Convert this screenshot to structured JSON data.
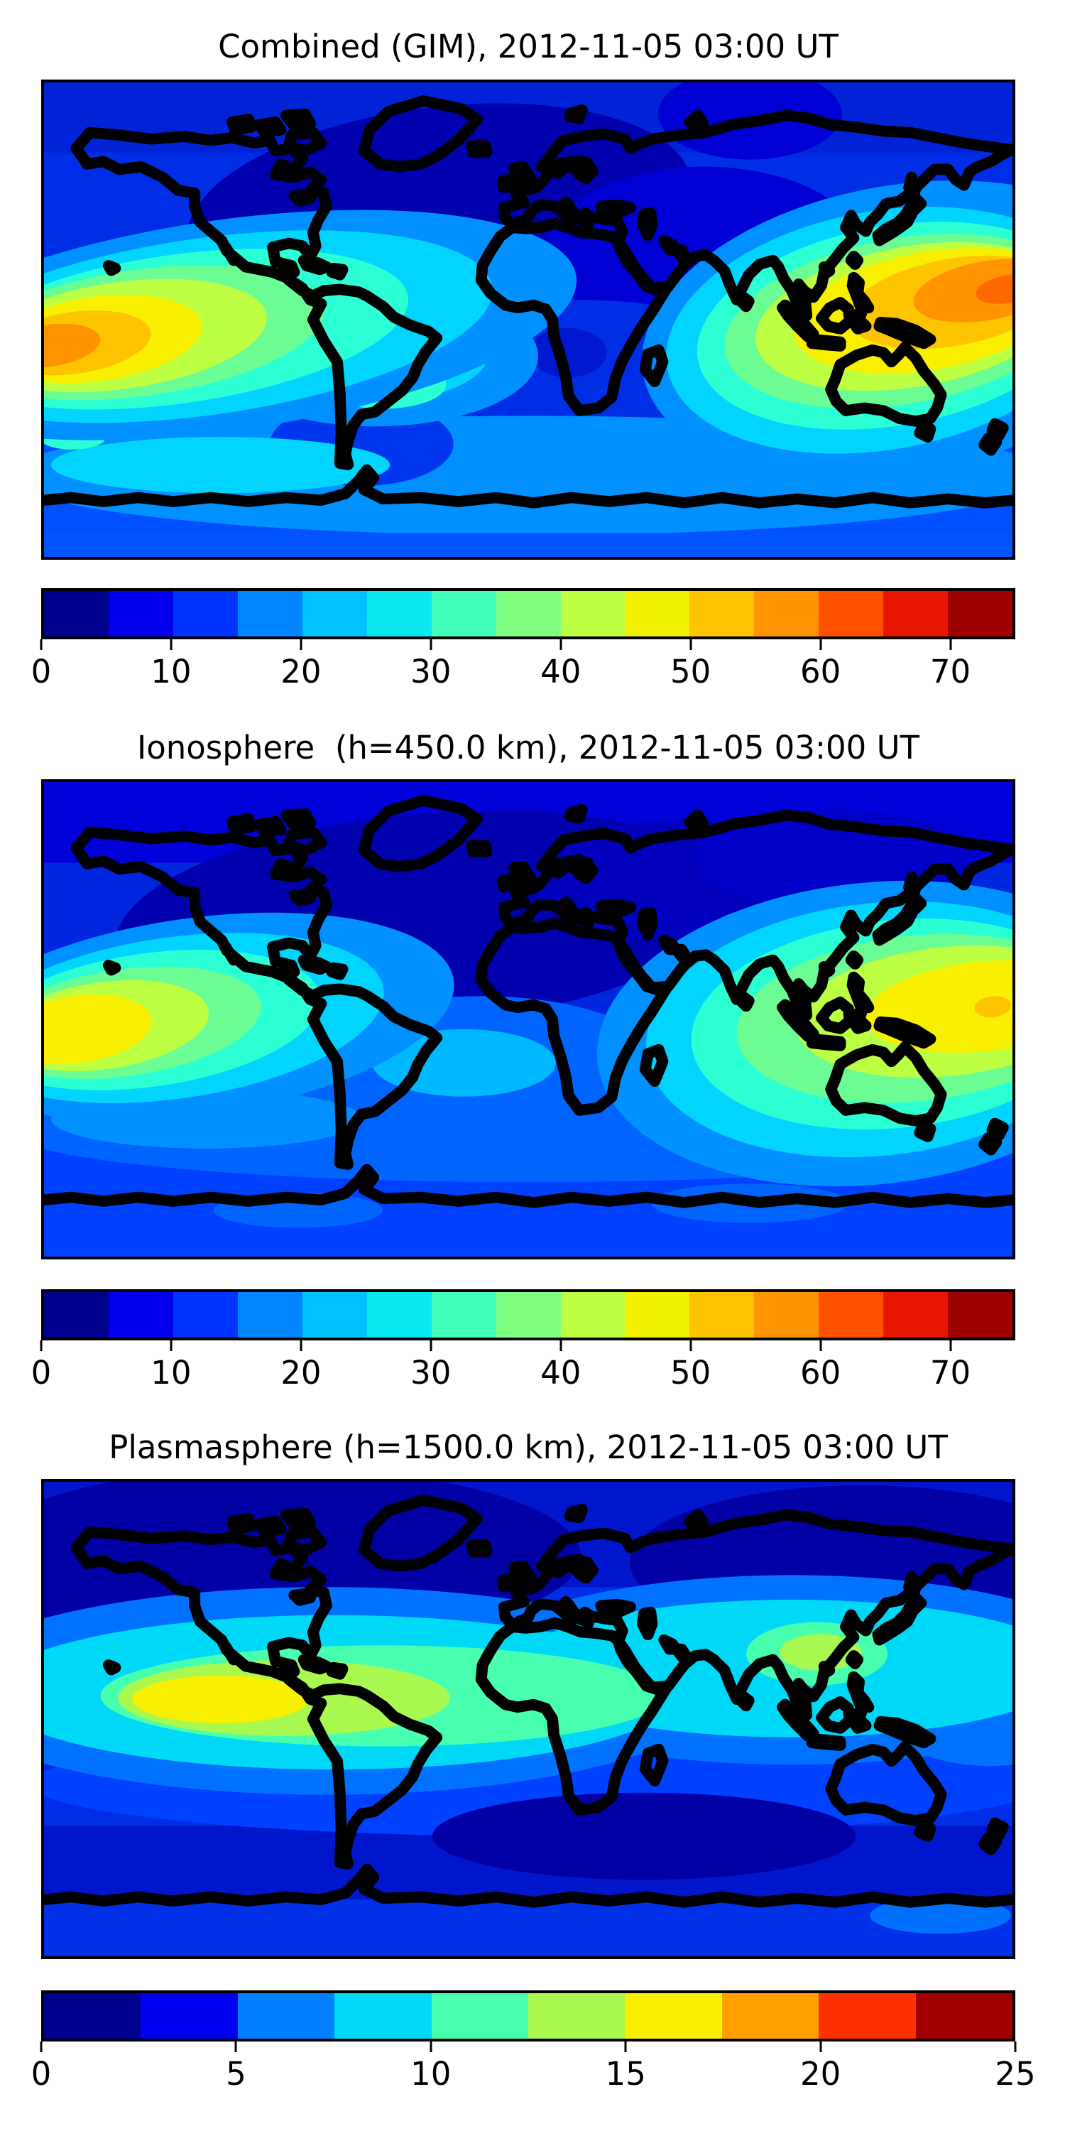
{
  "figure": {
    "background_color": "#ffffff",
    "panels": [
      {
        "id": "combined",
        "title": "Combined (GIM), 2012-11-05 03:00 UT",
        "colorbar": {
          "min": 0,
          "max": 75,
          "level_step": 5,
          "ticks": [
            0,
            10,
            20,
            30,
            40,
            50,
            60,
            70
          ],
          "tick_labels": [
            "0",
            "10",
            "20",
            "30",
            "40",
            "50",
            "60",
            "70"
          ],
          "colors": [
            "#00008f",
            "#0000ee",
            "#0033ff",
            "#0084ff",
            "#00c4ff",
            "#0ae8f0",
            "#43ffbc",
            "#80ff80",
            "#bcff43",
            "#f0f000",
            "#ffc400",
            "#ff9400",
            "#ff5000",
            "#e81600",
            "#9f0000"
          ]
        }
      },
      {
        "id": "ionosphere",
        "title": "Ionosphere  (h=450.0 km), 2012-11-05 03:00 UT",
        "colorbar": {
          "min": 0,
          "max": 75,
          "level_step": 5,
          "ticks": [
            0,
            10,
            20,
            30,
            40,
            50,
            60,
            70
          ],
          "tick_labels": [
            "0",
            "10",
            "20",
            "30",
            "40",
            "50",
            "60",
            "70"
          ],
          "colors": [
            "#00008f",
            "#0000ee",
            "#0033ff",
            "#0084ff",
            "#00c4ff",
            "#0ae8f0",
            "#43ffbc",
            "#80ff80",
            "#bcff43",
            "#f0f000",
            "#ffc400",
            "#ff9400",
            "#ff5000",
            "#e81600",
            "#9f0000"
          ]
        }
      },
      {
        "id": "plasmasphere",
        "title": "Plasmasphere (h=1500.0 km), 2012-11-05 03:00 UT",
        "colorbar": {
          "min": 0,
          "max": 25,
          "level_step": 2.5,
          "ticks": [
            0,
            5,
            10,
            15,
            20,
            25
          ],
          "tick_labels": [
            "0",
            "5",
            "10",
            "15",
            "20",
            "25"
          ],
          "colors": [
            "#000090",
            "#0000f0",
            "#0080ff",
            "#00d8f8",
            "#48ffb0",
            "#a8f84f",
            "#f8f000",
            "#ffa000",
            "#ff3000",
            "#a00000"
          ]
        }
      }
    ]
  },
  "chart_data": [
    {
      "type": "heatmap",
      "subtype": "filled-contour world map (jet colormap, coastlines overlaid)",
      "title": "Combined (GIM), 2012-11-05 03:00 UT",
      "layer": "Combined (GIM)",
      "datetime_ut": "2012-11-05 03:00",
      "projection": "equirectangular",
      "lon_range": [
        -180,
        180
      ],
      "lat_range": [
        -90,
        90
      ],
      "grid": false,
      "colorbar": {
        "min": 0,
        "max": 75,
        "level_step": 5,
        "ticks": [
          0,
          10,
          20,
          30,
          40,
          50,
          60,
          70
        ],
        "position": "bottom"
      },
      "estimated_features": [
        {
          "feature": "equatorial-anomaly maximum over west Pacific / east of Philippines-New Guinea",
          "approx_lon": 170,
          "approx_lat": 6,
          "value": 65
        },
        {
          "feature": "secondary maximum at left map edge (east Pacific)",
          "approx_lon": -178,
          "approx_lat": -5,
          "value": 60
        },
        {
          "feature": "elevated band over northern South America",
          "approx_lon": -60,
          "approx_lat": -10,
          "value": 30
        },
        {
          "feature": "nightside minimum over Canada / North Atlantic / Europe",
          "approx_lon": -40,
          "approx_lat": 55,
          "value": 5
        },
        {
          "feature": "southern mid-latitude band",
          "approx_lon": 0,
          "approx_lat": -58,
          "value": 22
        }
      ]
    },
    {
      "type": "heatmap",
      "subtype": "filled-contour world map (jet colormap, coastlines overlaid)",
      "title": "Ionosphere  (h=450.0 km), 2012-11-05 03:00 UT",
      "layer": "Ionosphere",
      "shell_height_km": 450.0,
      "datetime_ut": "2012-11-05 03:00",
      "projection": "equirectangular",
      "lon_range": [
        -180,
        180
      ],
      "lat_range": [
        -90,
        90
      ],
      "grid": false,
      "colorbar": {
        "min": 0,
        "max": 75,
        "level_step": 5,
        "ticks": [
          0,
          10,
          20,
          30,
          40,
          50,
          60,
          70
        ],
        "position": "bottom"
      },
      "estimated_features": [
        {
          "feature": "maximum east of Philippines (small orange core)",
          "approx_lon": 172,
          "approx_lat": 2,
          "value": 53
        },
        {
          "feature": "yellow crest over Philippines / New Guinea",
          "approx_lon": 150,
          "approx_lat": 0,
          "value": 48
        },
        {
          "feature": "secondary maximum at left map edge (east Pacific)",
          "approx_lon": -178,
          "approx_lat": -2,
          "value": 47
        },
        {
          "feature": "deep nightside minimum over North Atlantic / Europe / NW Africa",
          "approx_lon": -30,
          "approx_lat": 45,
          "value": 3
        },
        {
          "feature": "dark patch over southern Africa",
          "approx_lon": 15,
          "approx_lat": -25,
          "value": 7
        }
      ]
    },
    {
      "type": "heatmap",
      "subtype": "filled-contour world map (jet colormap, coastlines overlaid)",
      "title": "Plasmasphere (h=1500.0 km), 2012-11-05 03:00 UT",
      "layer": "Plasmasphere",
      "shell_height_km": 1500.0,
      "datetime_ut": "2012-11-05 03:00",
      "projection": "equirectangular",
      "lon_range": [
        -180,
        180
      ],
      "lat_range": [
        -90,
        90
      ],
      "grid": false,
      "colorbar": {
        "min": 0,
        "max": 25,
        "level_step": 2.5,
        "ticks": [
          0,
          5,
          10,
          15,
          20,
          25
        ],
        "position": "bottom"
      },
      "estimated_features": [
        {
          "feature": "maximum of equatorial belt over Peru / western South America",
          "approx_lon": -115,
          "approx_lat": -8,
          "value": 17
        },
        {
          "feature": "secondary green spot near Philippines",
          "approx_lon": 105,
          "approx_lat": 26,
          "value": 13
        },
        {
          "feature": "cyan equatorial belt spanning all longitudes",
          "approx_lon": 0,
          "approx_lat": 0,
          "value": 9
        },
        {
          "feature": "polar minima (Arctic Canada and Siberia)",
          "approx_lon": -90,
          "approx_lat": 62,
          "value": 2
        },
        {
          "feature": "southern minimum over south Indian Ocean",
          "approx_lon": 40,
          "approx_lat": -45,
          "value": 2
        }
      ]
    }
  ]
}
